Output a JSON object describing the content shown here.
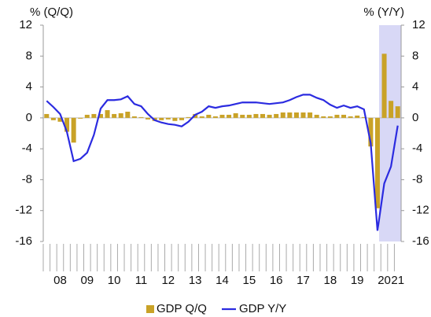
{
  "chart_data": {
    "type": "bar",
    "ylabel": "% (Q/Q)",
    "y2label": "% (Y/Y)",
    "categories": [
      null,
      null,
      "08",
      null,
      null,
      null,
      "09",
      null,
      null,
      null,
      "10",
      null,
      null,
      null,
      "11",
      null,
      null,
      null,
      "12",
      null,
      null,
      null,
      "13",
      null,
      null,
      null,
      "14",
      null,
      null,
      null,
      "15",
      null,
      null,
      null,
      "16",
      null,
      null,
      null,
      "17",
      null,
      null,
      null,
      "18",
      null,
      null,
      null,
      "19",
      null,
      null,
      null,
      "20",
      null,
      "21"
    ],
    "series": [
      {
        "name": "GDP Q/Q",
        "type": "bar",
        "color": "#c9a227",
        "axis": "y",
        "values": [
          0.5,
          -0.3,
          -0.5,
          -1.8,
          -3.2,
          -0.1,
          0.4,
          0.5,
          0.5,
          1.0,
          0.5,
          0.6,
          0.8,
          0.2,
          0.1,
          -0.2,
          -0.4,
          -0.3,
          -0.2,
          -0.4,
          -0.3,
          0.1,
          0.5,
          0.2,
          0.4,
          0.2,
          0.4,
          0.4,
          0.6,
          0.4,
          0.4,
          0.5,
          0.5,
          0.4,
          0.5,
          0.7,
          0.7,
          0.7,
          0.7,
          0.7,
          0.4,
          0.2,
          0.2,
          0.4,
          0.4,
          0.2,
          0.3,
          0.1,
          -3.7,
          -11.7,
          8.3,
          2.2,
          1.5
        ]
      },
      {
        "name": "GDP Y/Y",
        "type": "line",
        "color": "#2b2be0",
        "axis": "y2",
        "values": [
          2.2,
          1.4,
          0.5,
          -1.8,
          -5.6,
          -5.3,
          -4.5,
          -2.2,
          1.2,
          2.3,
          2.3,
          2.4,
          2.8,
          1.8,
          1.5,
          0.5,
          -0.3,
          -0.6,
          -0.8,
          -0.9,
          -1.1,
          -0.5,
          0.4,
          0.8,
          1.5,
          1.3,
          1.5,
          1.6,
          1.8,
          2.0,
          2.0,
          2.0,
          1.9,
          1.8,
          1.9,
          2.0,
          2.3,
          2.7,
          3.0,
          3.0,
          2.6,
          2.3,
          1.7,
          1.3,
          1.6,
          1.3,
          1.5,
          1.1,
          -3.3,
          -14.6,
          -8.5,
          -6.3,
          -1.0
        ]
      }
    ],
    "ylim": [
      -16,
      12
    ],
    "yticks": [
      -16,
      -12,
      -8,
      -4,
      0,
      4,
      8,
      12
    ],
    "y2lim": [
      -16,
      12
    ],
    "y2ticks": [
      -16,
      -12,
      -8,
      -4,
      0,
      4,
      8,
      12
    ],
    "legend": "bottom"
  }
}
